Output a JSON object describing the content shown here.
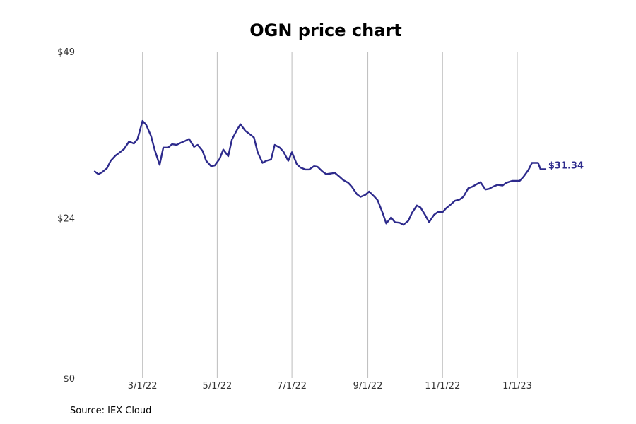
{
  "colors": {
    "line": "#2d2a8c"
  },
  "source": "Source: IEX Cloud",
  "chart_data": {
    "type": "line",
    "title": "OGN price chart",
    "xlabel": "",
    "ylabel": "",
    "ylim": [
      0,
      49
    ],
    "xlim": [
      "2022-01-10",
      "2023-02-15"
    ],
    "grid": "vertical",
    "y_ticks": [
      {
        "value": 0,
        "label": "$0"
      },
      {
        "value": 24,
        "label": "$24"
      },
      {
        "value": 49,
        "label": "$49"
      }
    ],
    "x_ticks": [
      {
        "date": "2022-03-01",
        "label": "3/1/22"
      },
      {
        "date": "2022-05-01",
        "label": "5/1/22"
      },
      {
        "date": "2022-07-01",
        "label": "7/1/22"
      },
      {
        "date": "2022-09-01",
        "label": "9/1/22"
      },
      {
        "date": "2022-11-01",
        "label": "11/1/22"
      },
      {
        "date": "2023-01-01",
        "label": "1/1/23"
      }
    ],
    "last_value_label": "$31.34",
    "series": [
      {
        "x": [
          "2022-01-21",
          "2022-01-24",
          "2022-01-27",
          "2022-01-31",
          "2022-02-03",
          "2022-02-07",
          "2022-02-10",
          "2022-02-14",
          "2022-02-18",
          "2022-02-22",
          "2022-02-25",
          "2022-03-01",
          "2022-03-04",
          "2022-03-08",
          "2022-03-11",
          "2022-03-15",
          "2022-03-18",
          "2022-03-22",
          "2022-03-25",
          "2022-03-29",
          "2022-04-01",
          "2022-04-05",
          "2022-04-08",
          "2022-04-12",
          "2022-04-15",
          "2022-04-19",
          "2022-04-22",
          "2022-04-26",
          "2022-04-29",
          "2022-05-03",
          "2022-05-06",
          "2022-05-10",
          "2022-05-13",
          "2022-05-17",
          "2022-05-20",
          "2022-05-24",
          "2022-05-27",
          "2022-05-31",
          "2022-06-03",
          "2022-06-07",
          "2022-06-10",
          "2022-06-14",
          "2022-06-17",
          "2022-06-21",
          "2022-06-24",
          "2022-06-28",
          "2022-07-01",
          "2022-07-05",
          "2022-07-08",
          "2022-07-12",
          "2022-07-15",
          "2022-07-19",
          "2022-07-22",
          "2022-07-26",
          "2022-07-29",
          "2022-08-02",
          "2022-08-05",
          "2022-08-09",
          "2022-08-12",
          "2022-08-16",
          "2022-08-19",
          "2022-08-23",
          "2022-08-26",
          "2022-08-30",
          "2022-09-02",
          "2022-09-06",
          "2022-09-09",
          "2022-09-13",
          "2022-09-16",
          "2022-09-20",
          "2022-09-23",
          "2022-09-27",
          "2022-09-30",
          "2022-10-04",
          "2022-10-07",
          "2022-10-11",
          "2022-10-14",
          "2022-10-18",
          "2022-10-21",
          "2022-10-25",
          "2022-10-28",
          "2022-11-01",
          "2022-11-04",
          "2022-11-08",
          "2022-11-11",
          "2022-11-15",
          "2022-11-18",
          "2022-11-22",
          "2022-11-25",
          "2022-11-29",
          "2022-12-02",
          "2022-12-06",
          "2022-12-09",
          "2022-12-13",
          "2022-12-16",
          "2022-12-20",
          "2022-12-23",
          "2022-12-28",
          "2023-01-03",
          "2023-01-06",
          "2023-01-10",
          "2023-01-13",
          "2023-01-18",
          "2023-01-20",
          "2023-01-24"
        ],
        "y": [
          31.0,
          30.6,
          30.9,
          31.5,
          32.6,
          33.4,
          33.8,
          34.4,
          35.5,
          35.2,
          35.9,
          38.6,
          38.0,
          36.3,
          34.2,
          32.0,
          34.6,
          34.6,
          35.1,
          35.0,
          35.3,
          35.6,
          35.9,
          34.7,
          35.0,
          34.1,
          32.6,
          31.8,
          31.9,
          32.9,
          34.3,
          33.3,
          35.8,
          37.2,
          38.1,
          37.1,
          36.7,
          36.1,
          33.9,
          32.3,
          32.6,
          32.8,
          35.0,
          34.6,
          34.0,
          32.6,
          33.9,
          32.1,
          31.6,
          31.3,
          31.3,
          31.8,
          31.7,
          31.0,
          30.6,
          30.7,
          30.8,
          30.2,
          29.7,
          29.3,
          28.7,
          27.6,
          27.2,
          27.5,
          28.0,
          27.3,
          26.7,
          24.8,
          23.2,
          24.1,
          23.4,
          23.3,
          23.0,
          23.6,
          24.8,
          25.9,
          25.6,
          24.4,
          23.4,
          24.5,
          24.9,
          24.9,
          25.5,
          26.1,
          26.6,
          26.8,
          27.2,
          28.5,
          28.7,
          29.1,
          29.4,
          28.3,
          28.4,
          28.8,
          29.0,
          28.9,
          29.3,
          29.6,
          29.6,
          30.2,
          31.2,
          32.3,
          32.3,
          31.34,
          31.34
        ]
      }
    ]
  }
}
